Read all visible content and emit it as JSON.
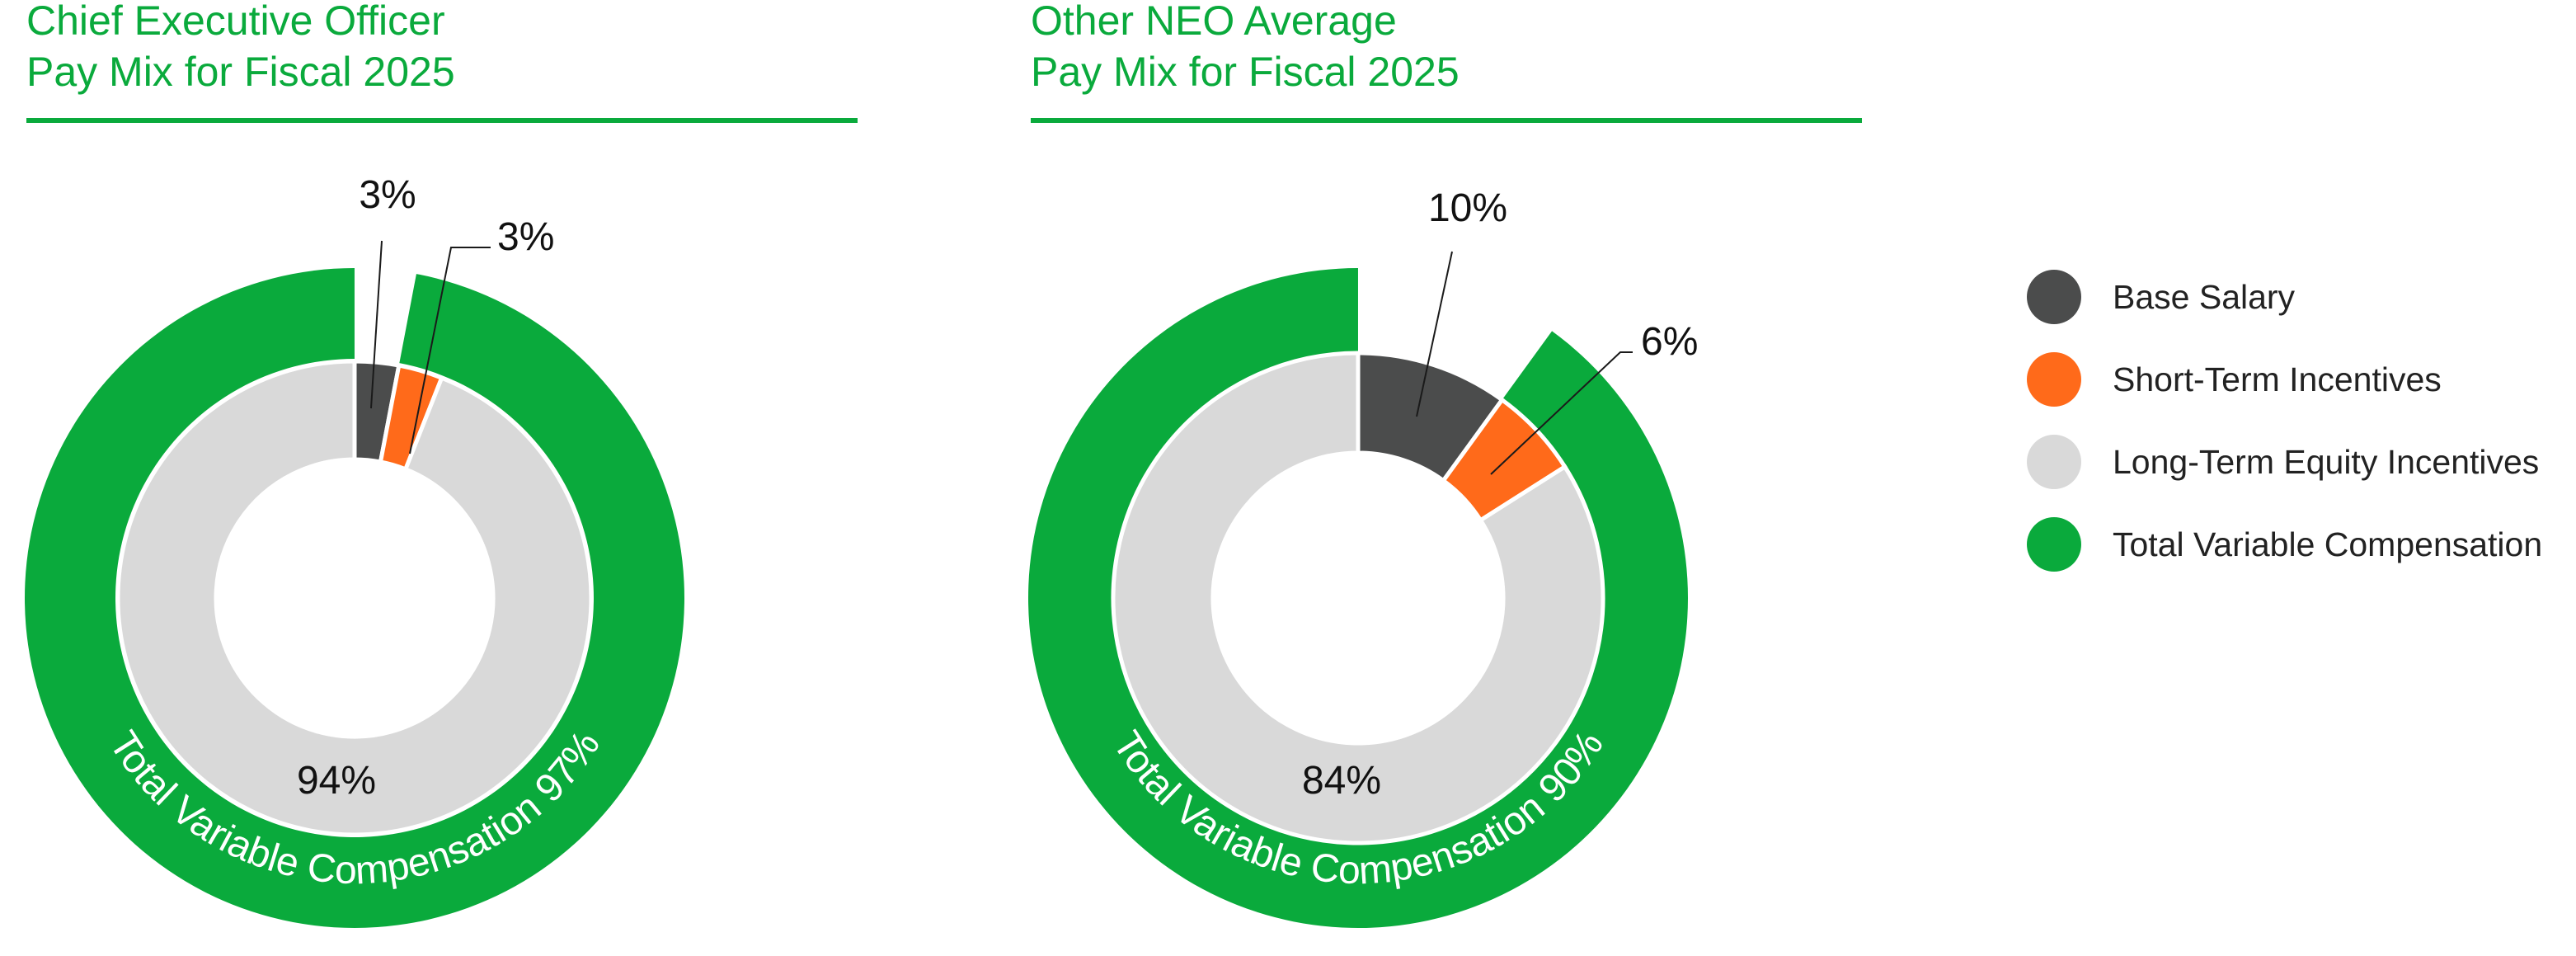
{
  "colors": {
    "base_salary": "#4b4c4c",
    "short_term": "#ff6a1a",
    "long_term": "#d9d9d9",
    "variable": "#0aaa3c",
    "title": "#0aaa3c"
  },
  "legend": [
    {
      "label": "Base Salary",
      "color": "#4b4c4c"
    },
    {
      "label": "Short-Term Incentives",
      "color": "#ff6a1a"
    },
    {
      "label": "Long-Term Equity Incentives",
      "color": "#d9d9d9"
    },
    {
      "label": "Total Variable Compensation",
      "color": "#0aaa3c"
    }
  ],
  "chart_data": [
    {
      "type": "pie",
      "title_line1": "Chief Executive Officer",
      "title_line2": "Pay Mix for Fiscal 2025",
      "slices": [
        {
          "name": "Base Salary",
          "value": 3,
          "label": "3%",
          "color": "#4b4c4c"
        },
        {
          "name": "Short-Term Incentives",
          "value": 3,
          "label": "3%",
          "color": "#ff6a1a"
        },
        {
          "name": "Long-Term Equity Incentives",
          "value": 94,
          "label": "94%",
          "color": "#d9d9d9"
        }
      ],
      "outer_ring": {
        "name": "Total Variable Compensation",
        "value": 97,
        "label": "Total Variable Compensation 97%",
        "color": "#0aaa3c"
      }
    },
    {
      "type": "pie",
      "title_line1": "Other NEO Average",
      "title_line2": "Pay Mix for Fiscal 2025",
      "slices": [
        {
          "name": "Base Salary",
          "value": 10,
          "label": "10%",
          "color": "#4b4c4c"
        },
        {
          "name": "Short-Term Incentives",
          "value": 6,
          "label": "6%",
          "color": "#ff6a1a"
        },
        {
          "name": "Long-Term Equity Incentives",
          "value": 84,
          "label": "84%",
          "color": "#d9d9d9"
        }
      ],
      "outer_ring": {
        "name": "Total Variable Compensation",
        "value": 90,
        "label": "Total Variable Compensation 90%",
        "color": "#0aaa3c"
      }
    }
  ]
}
